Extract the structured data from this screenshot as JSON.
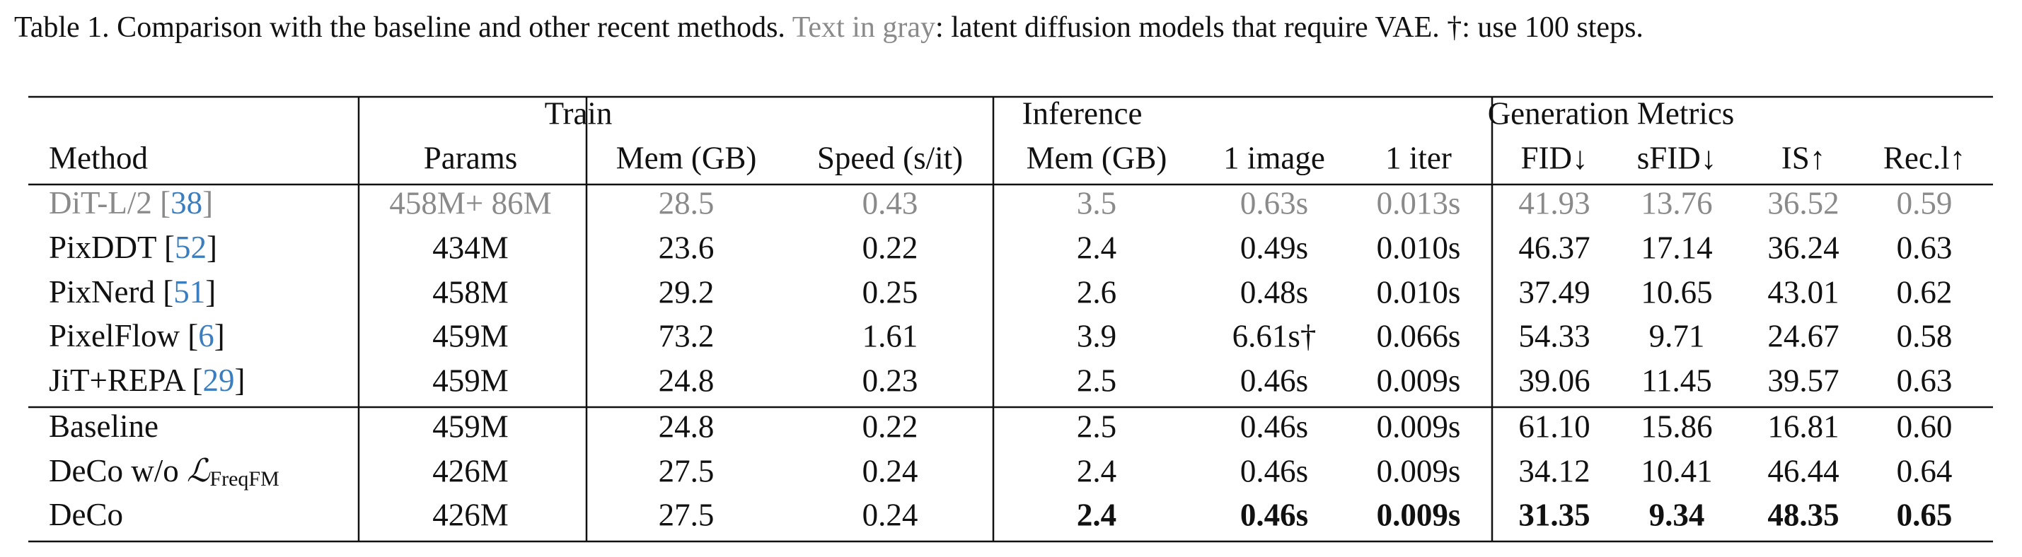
{
  "caption": {
    "lead": "Table 1. Comparison with the baseline and other recent methods.",
    "gray": "Text in gray",
    "rest": ": latent diffusion models that require VAE. †: use 100 steps."
  },
  "table": {
    "groups": [
      {
        "label": "Train",
        "from": 1,
        "to": 2
      },
      {
        "label": "Inference",
        "from": 3,
        "to": 5
      },
      {
        "label": "Generation Metrics",
        "from": 6,
        "to": 9
      }
    ],
    "header": [
      "Method",
      "Params",
      "Mem (GB)",
      "Speed (s/it)",
      "Mem (GB)",
      "1 image",
      "1 iter",
      "FID↓",
      "sFID↓",
      "IS↑",
      "Rec.l↑"
    ],
    "sections": [
      [
        {
          "method": {
            "name": "DiT-L/2 [",
            "ref": "38",
            "close": "]"
          },
          "gray": true,
          "cells": [
            "458M+ 86M",
            "28.5",
            "0.43",
            "3.5",
            "0.63s",
            "0.013s",
            "41.93",
            "13.76",
            "36.52",
            "0.59"
          ]
        },
        {
          "method": {
            "name": "PixDDT [",
            "ref": "52",
            "close": "]"
          },
          "cells": [
            "434M",
            "23.6",
            "0.22",
            "2.4",
            "0.49s",
            "0.010s",
            "46.37",
            "17.14",
            "36.24",
            "0.63"
          ]
        },
        {
          "method": {
            "name": "PixNerd [",
            "ref": "51",
            "close": "]"
          },
          "cells": [
            "458M",
            "29.2",
            "0.25",
            "2.6",
            "0.48s",
            "0.010s",
            "37.49",
            "10.65",
            "43.01",
            "0.62"
          ]
        },
        {
          "method": {
            "name": "PixelFlow [",
            "ref": "6",
            "close": "]"
          },
          "cells": [
            "459M",
            "73.2",
            "1.61",
            "3.9",
            "6.61s†",
            "0.066s",
            "54.33",
            "9.71",
            "24.67",
            "0.58"
          ]
        },
        {
          "method": {
            "name": "JiT+REPA [",
            "ref": "29",
            "close": "]"
          },
          "cells": [
            "459M",
            "24.8",
            "0.23",
            "2.5",
            "0.46s",
            "0.009s",
            "39.06",
            "11.45",
            "39.57",
            "0.63"
          ]
        }
      ],
      [
        {
          "method": {
            "name": "Baseline"
          },
          "cells": [
            "459M",
            "24.8",
            "0.22",
            "2.5",
            "0.46s",
            "0.009s",
            "61.10",
            "15.86",
            "16.81",
            "0.60"
          ]
        },
        {
          "method": {
            "name": "DeCo w/o ",
            "math": "ℒ",
            "sub": "FreqFM"
          },
          "cells": [
            "426M",
            "27.5",
            "0.24",
            "2.4",
            "0.46s",
            "0.009s",
            "34.12",
            "10.41",
            "46.44",
            "0.64"
          ]
        },
        {
          "method": {
            "name": "DeCo"
          },
          "bold_from": 3,
          "cells": [
            "426M",
            "27.5",
            "0.24",
            "2.4",
            "0.46s",
            "0.009s",
            "31.35",
            "9.34",
            "48.35",
            "0.65"
          ]
        }
      ]
    ]
  }
}
